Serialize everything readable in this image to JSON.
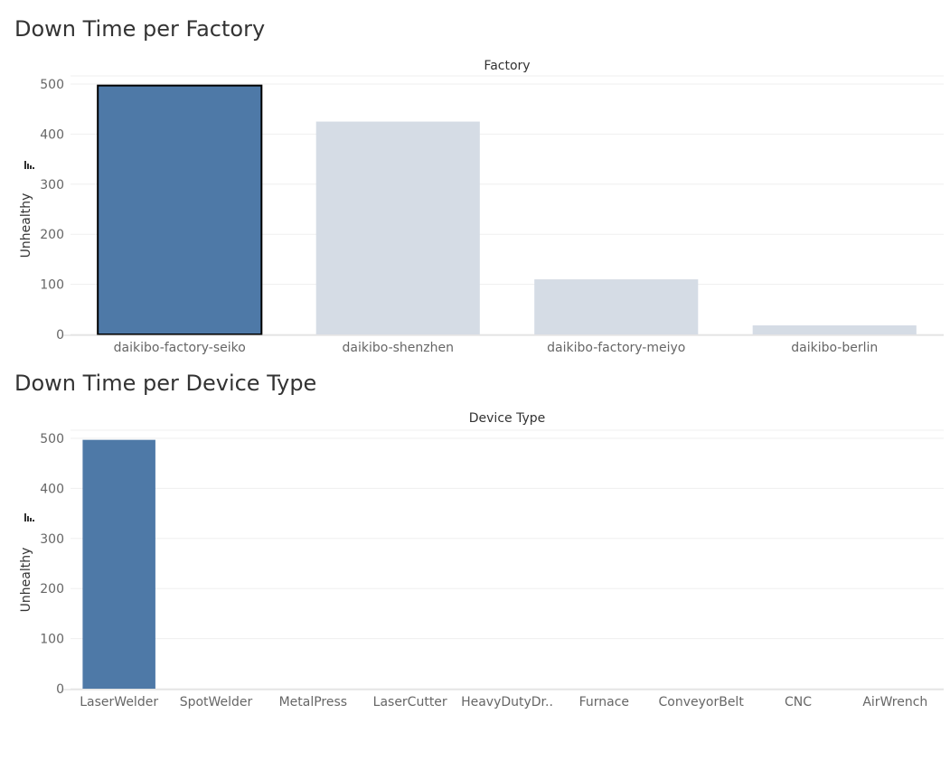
{
  "chart_data": [
    {
      "type": "bar",
      "title": "Down Time per Factory",
      "xlabel": "Factory",
      "ylabel": "Unhealthy",
      "ylim": [
        0,
        500
      ],
      "yticks": [
        0,
        100,
        200,
        300,
        400,
        500
      ],
      "categories": [
        "daikibo-factory-seiko",
        "daikibo-shenzhen",
        "daikibo-factory-meiyo",
        "daikibo-berlin"
      ],
      "values": [
        497,
        425,
        110,
        18
      ],
      "selected": "daikibo-factory-seiko",
      "grid": true,
      "legend": "none"
    },
    {
      "type": "bar",
      "title": "Down Time per Device Type",
      "xlabel": "Device Type",
      "ylabel": "Unhealthy",
      "ylim": [
        0,
        500
      ],
      "yticks": [
        0,
        100,
        200,
        300,
        400,
        500
      ],
      "categories": [
        "LaserWelder",
        "SpotWelder",
        "MetalPress",
        "LaserCutter",
        "HeavyDutyDr..",
        "Furnace",
        "ConveyorBelt",
        "CNC",
        "AirWrench"
      ],
      "values": [
        497,
        0,
        0,
        0,
        0,
        0,
        0,
        0,
        0
      ],
      "grid": true,
      "legend": "none"
    }
  ],
  "colors": {
    "selected_bar": "#4e79a7",
    "dimmed_bar": "#d5dce5",
    "selected_outline": "#000000",
    "gridline": "#efefef",
    "text": "#333333",
    "tick_text": "#666666"
  },
  "icons": {
    "sort": "sort-descending-icon"
  }
}
